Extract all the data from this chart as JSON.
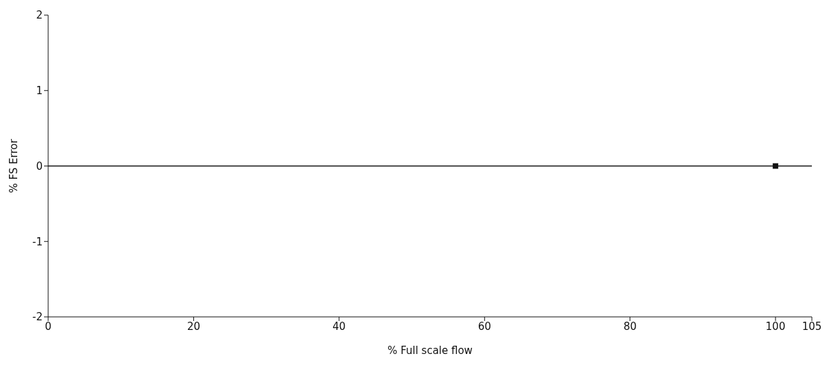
{
  "chart_data": {
    "type": "scatter",
    "xlabel": "% Full scale flow",
    "ylabel": "% FS Error",
    "x": [
      100
    ],
    "series": [
      {
        "color": "#111111",
        "values": [
          0
        ]
      }
    ],
    "marker": "square",
    "xlim": [
      0,
      105
    ],
    "xticks": [
      0,
      20,
      40,
      60,
      80,
      100,
      105
    ],
    "ylim": [
      -2,
      2
    ],
    "yticks": [
      -2,
      -1,
      0,
      1,
      2
    ],
    "ref_lines": [
      {
        "axis": "y",
        "value": 0,
        "color": "#111111"
      }
    ]
  }
}
